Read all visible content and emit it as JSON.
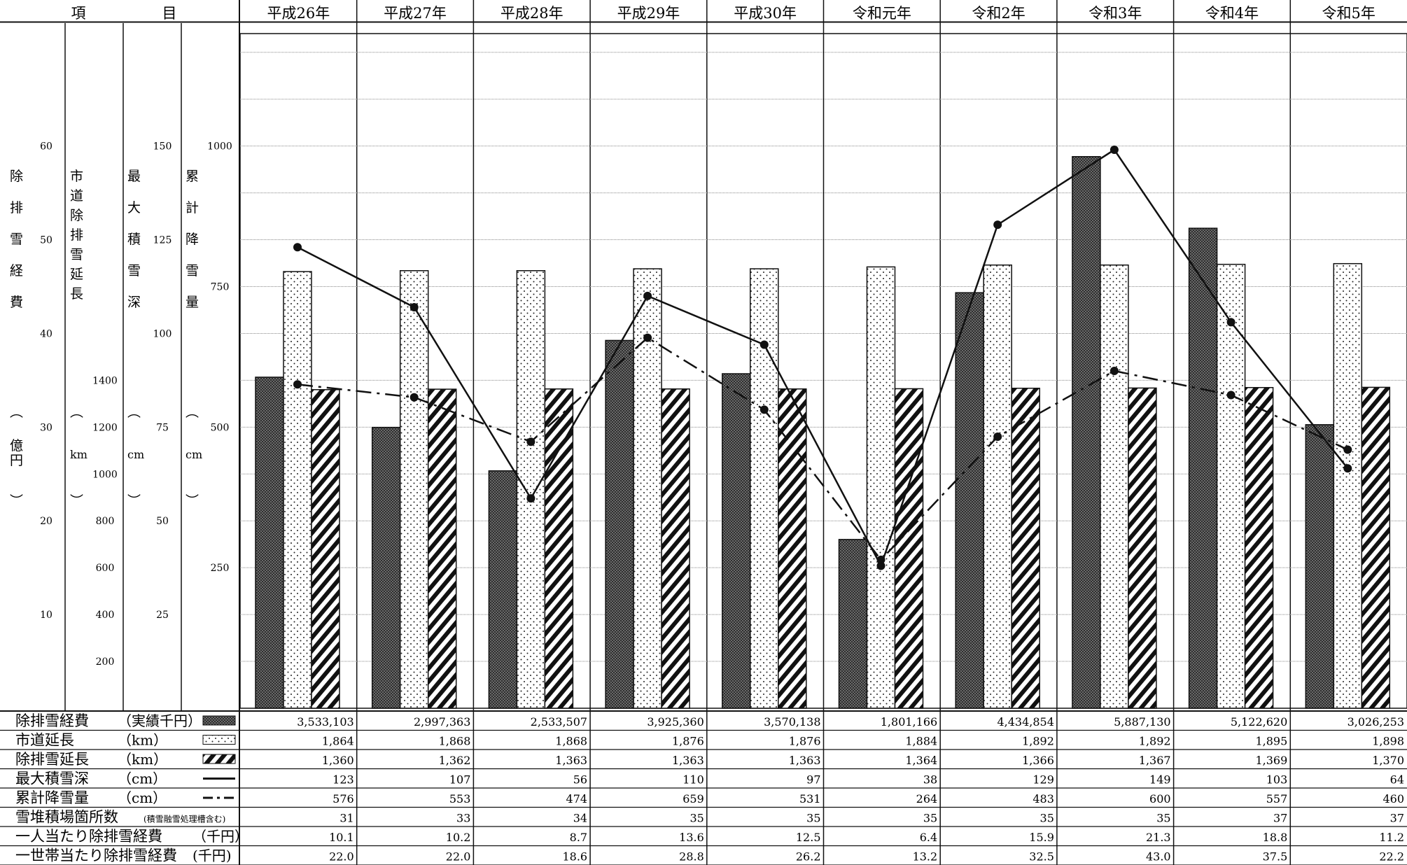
{
  "title": "",
  "header": {
    "item_label_1": "項",
    "item_label_2": "目",
    "years": [
      "平成26年",
      "平成27年",
      "平成28年",
      "平成29年",
      "平成30年",
      "令和元年",
      "令和2年",
      "令和3年",
      "令和4年",
      "令和5年"
    ]
  },
  "axes": {
    "cost": {
      "label": [
        "除",
        "排",
        "雪",
        "経",
        "費"
      ],
      "unit": [
        "︵",
        "億",
        "円",
        "︶"
      ],
      "ticks": [
        "10",
        "20",
        "30",
        "40",
        "50",
        "60"
      ],
      "range": [
        0,
        72
      ]
    },
    "road": {
      "label": [
        "市",
        "道",
        "除",
        "排",
        "雪",
        "延",
        "長"
      ],
      "unit": [
        "︵",
        "km",
        "︶"
      ],
      "ticks": [
        "200",
        "400",
        "600",
        "800",
        "1000",
        "1200",
        "1400"
      ],
      "range": [
        0,
        2880
      ]
    },
    "depth": {
      "label": [
        "最",
        "大",
        "積",
        "雪",
        "深"
      ],
      "unit": [
        "︵",
        "cm",
        "︶"
      ],
      "ticks": [
        "25",
        "50",
        "75",
        "100",
        "125",
        "150"
      ],
      "range": [
        0,
        180
      ]
    },
    "snow": {
      "label": [
        "累",
        "計",
        "降",
        "雪",
        "量"
      ],
      "unit": [
        "︵",
        "cm",
        "︶"
      ],
      "ticks": [
        "250",
        "500",
        "750",
        "1000"
      ],
      "range": [
        0,
        1200
      ]
    }
  },
  "colors": {
    "grid": "#777777",
    "line": "#111111",
    "bar_dark": "#4a4a4a"
  },
  "chart_data": {
    "type": "bar",
    "categories": [
      "平成26年",
      "平成27年",
      "平成28年",
      "平成29年",
      "平成30年",
      "令和元年",
      "令和2年",
      "令和3年",
      "令和4年",
      "令和5年"
    ],
    "series": [
      {
        "name": "除排雪経費",
        "unit": "実績千円",
        "kind": "bar",
        "pattern": "crosshatch",
        "values": [
          3533103,
          2997363,
          2533507,
          3925360,
          3570138,
          1801166,
          4434854,
          5887130,
          5122620,
          3026253
        ]
      },
      {
        "name": "市道延長",
        "unit": "km",
        "kind": "bar",
        "pattern": "dots",
        "values": [
          1864,
          1868,
          1868,
          1876,
          1876,
          1884,
          1892,
          1892,
          1895,
          1898
        ]
      },
      {
        "name": "除排雪延長",
        "unit": "km",
        "kind": "bar",
        "pattern": "diagonal",
        "values": [
          1360,
          1362,
          1363,
          1363,
          1363,
          1364,
          1366,
          1367,
          1369,
          1370
        ]
      },
      {
        "name": "最大積雪深",
        "unit": "cm",
        "kind": "line",
        "dash": "solid",
        "values": [
          123,
          107,
          56,
          110,
          97,
          38,
          129,
          149,
          103,
          64
        ]
      },
      {
        "name": "累計降雪量",
        "unit": "cm",
        "kind": "line",
        "dash": "dashdot",
        "values": [
          576,
          553,
          474,
          659,
          531,
          264,
          483,
          600,
          557,
          460
        ]
      }
    ]
  },
  "table": {
    "rows": [
      {
        "label": "除排雪経費",
        "unit": "（実績千円）",
        "legend": "bar-dark",
        "values": [
          "3,533,103",
          "2,997,363",
          "2,533,507",
          "3,925,360",
          "3,570,138",
          "1,801,166",
          "4,434,854",
          "5,887,130",
          "5,122,620",
          "3,026,253"
        ]
      },
      {
        "label": "市道延長",
        "unit": "（km）",
        "legend": "bar-dots",
        "values": [
          "1,864",
          "1,868",
          "1,868",
          "1,876",
          "1,876",
          "1,884",
          "1,892",
          "1,892",
          "1,895",
          "1,898"
        ]
      },
      {
        "label": "除排雪延長",
        "unit": "（km）",
        "legend": "bar-diag",
        "values": [
          "1,360",
          "1,362",
          "1,363",
          "1,363",
          "1,363",
          "1,364",
          "1,366",
          "1,367",
          "1,369",
          "1,370"
        ]
      },
      {
        "label": "最大積雪深",
        "unit": "（cm）",
        "legend": "line-solid",
        "values": [
          "123",
          "107",
          "56",
          "110",
          "97",
          "38",
          "129",
          "149",
          "103",
          "64"
        ]
      },
      {
        "label": "累計降雪量",
        "unit": "（cm）",
        "legend": "line-dashdot",
        "values": [
          "576",
          "553",
          "474",
          "659",
          "531",
          "264",
          "483",
          "600",
          "557",
          "460"
        ]
      },
      {
        "label": "雪堆積場箇所数",
        "unit": "(積雪融雪処理槽含む)",
        "legend": "",
        "values": [
          "31",
          "33",
          "34",
          "35",
          "35",
          "35",
          "35",
          "35",
          "37",
          "37"
        ]
      },
      {
        "label": "一人当たり除排雪経費",
        "unit": "（千円）",
        "legend": "",
        "values": [
          "10.1",
          "10.2",
          "8.7",
          "13.6",
          "12.5",
          "6.4",
          "15.9",
          "21.3",
          "18.8",
          "11.2"
        ]
      },
      {
        "label": "一世帯当たり除排雪経費",
        "unit": "(千円)",
        "legend": "",
        "values": [
          "22.0",
          "22.0",
          "18.6",
          "28.8",
          "26.2",
          "13.2",
          "32.5",
          "43.0",
          "37.5",
          "22.2"
        ]
      }
    ]
  }
}
